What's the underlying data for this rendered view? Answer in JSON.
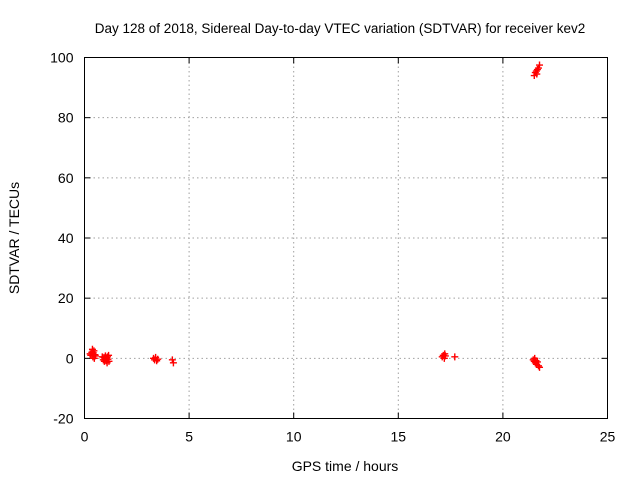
{
  "chart_data": {
    "type": "scatter",
    "title": "Day 128 of 2018, Sidereal Day-to-day VTEC variation (SDTVAR) for receiver kev2",
    "xlabel": "GPS time / hours",
    "ylabel": "SDTVAR / TECUs",
    "xlim": [
      0,
      25
    ],
    "ylim": [
      -20,
      100
    ],
    "xticks": [
      0,
      5,
      10,
      15,
      20,
      25
    ],
    "yticks": [
      -20,
      0,
      20,
      40,
      60,
      80,
      100
    ],
    "grid": true,
    "marker": "plus",
    "color": "#ff0000",
    "series": [
      {
        "name": "SDTVAR",
        "points": [
          [
            0.27,
            1.5
          ],
          [
            0.3,
            1.0
          ],
          [
            0.35,
            2.0
          ],
          [
            0.38,
            3.0
          ],
          [
            0.4,
            0.5
          ],
          [
            0.42,
            1.8
          ],
          [
            0.45,
            2.5
          ],
          [
            0.47,
            0.0
          ],
          [
            0.5,
            1.2
          ],
          [
            0.52,
            0.8
          ],
          [
            0.85,
            0.5
          ],
          [
            0.9,
            -0.5
          ],
          [
            0.93,
            0.3
          ],
          [
            0.95,
            -1.0
          ],
          [
            0.97,
            0.0
          ],
          [
            1.0,
            0.8
          ],
          [
            1.03,
            -0.8
          ],
          [
            1.05,
            0.2
          ],
          [
            1.08,
            -1.5
          ],
          [
            1.1,
            0.5
          ],
          [
            1.12,
            -0.3
          ],
          [
            1.15,
            1.0
          ],
          [
            1.17,
            -1.0
          ],
          [
            3.3,
            0.0
          ],
          [
            3.35,
            -0.5
          ],
          [
            3.4,
            0.3
          ],
          [
            3.45,
            -0.8
          ],
          [
            3.5,
            -0.3
          ],
          [
            4.2,
            -0.5
          ],
          [
            4.25,
            -1.5
          ],
          [
            17.1,
            0.5
          ],
          [
            17.15,
            1.0
          ],
          [
            17.2,
            0.0
          ],
          [
            17.22,
            1.5
          ],
          [
            17.25,
            0.8
          ],
          [
            17.7,
            0.5
          ],
          [
            21.45,
            -0.5
          ],
          [
            21.5,
            -1.0
          ],
          [
            21.52,
            0.0
          ],
          [
            21.55,
            -1.5
          ],
          [
            21.58,
            -0.8
          ],
          [
            21.6,
            -2.0
          ],
          [
            21.65,
            -1.2
          ],
          [
            21.7,
            -2.5
          ],
          [
            21.75,
            -3.0
          ],
          [
            21.5,
            94.0
          ],
          [
            21.55,
            95.0
          ],
          [
            21.6,
            95.5
          ],
          [
            21.65,
            96.0
          ],
          [
            21.7,
            96.5
          ],
          [
            21.75,
            97.5
          ],
          [
            21.62,
            94.5
          ]
        ]
      }
    ]
  }
}
